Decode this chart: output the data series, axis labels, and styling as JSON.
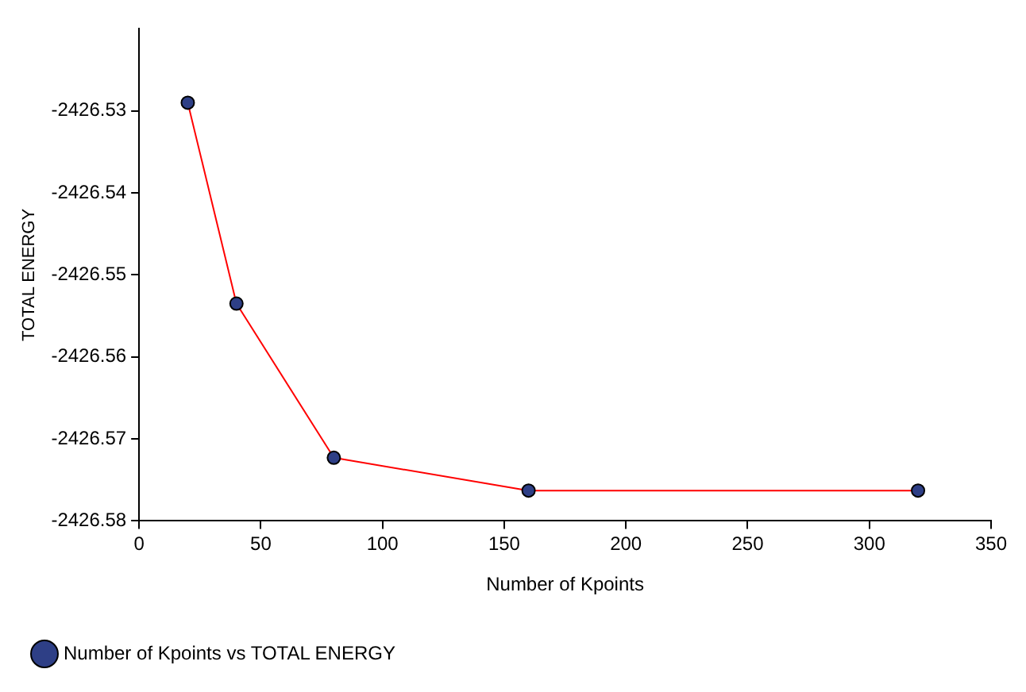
{
  "chart_data": {
    "type": "line",
    "xlabel": "Number of Kpoints",
    "ylabel": "TOTAL ENERGY",
    "x": [
      20,
      40,
      80,
      160,
      320
    ],
    "series": [
      {
        "name": "Number of Kpoints vs TOTAL ENERGY",
        "color": "#ff0000",
        "values": [
          -2426.529,
          -2426.5535,
          -2426.5723,
          -2426.5763,
          -2426.5763
        ]
      }
    ],
    "xlim": [
      0,
      350
    ],
    "xticks": [
      0,
      50,
      100,
      150,
      200,
      250,
      300,
      350
    ],
    "ylim": [
      -2426.58,
      -2426.52
    ],
    "yticks": [
      -2426.58,
      -2426.57,
      -2426.56,
      -2426.55,
      -2426.54,
      -2426.53
    ],
    "grid": false,
    "legend": "bottom left",
    "marker": "circle",
    "line_style": "solid"
  }
}
